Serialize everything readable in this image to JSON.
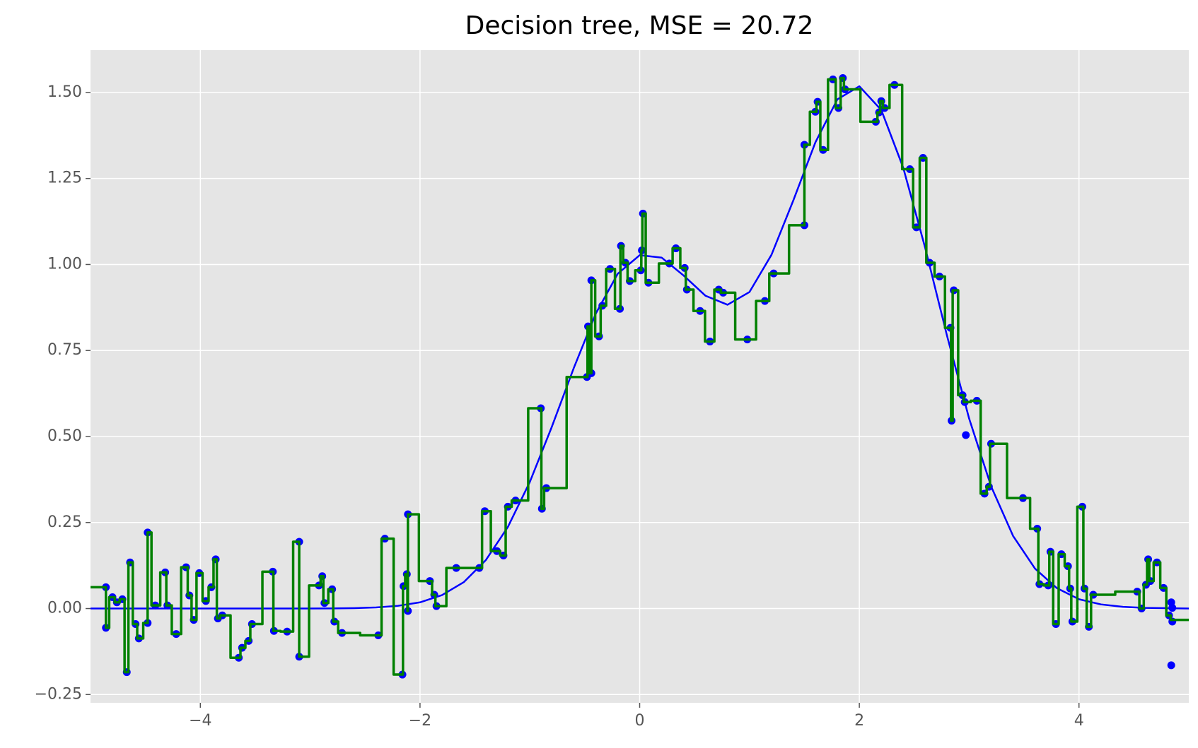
{
  "chart_data": {
    "type": "scatter",
    "title": "Decision tree, MSE = 20.72",
    "xlim": [
      -5,
      5
    ],
    "ylim": [
      -0.274,
      1.623
    ],
    "xticks": [
      {
        "value": -4,
        "label": "−4"
      },
      {
        "value": -2,
        "label": "−2"
      },
      0,
      2,
      4
    ],
    "yticks": [
      {
        "value": -0.25,
        "label": "−0.25"
      },
      {
        "value": 0,
        "label": "0.00"
      },
      {
        "value": 0.25,
        "label": "0.25"
      },
      {
        "value": 0.5,
        "label": "0.50"
      },
      {
        "value": 0.75,
        "label": "0.75"
      },
      {
        "value": 1,
        "label": "1.00"
      },
      {
        "value": 1.25,
        "label": "1.25"
      },
      {
        "value": 1.5,
        "label": "1.50"
      }
    ],
    "grid": true,
    "series": [
      {
        "type": "scatter",
        "color": "#0000ff",
        "x": [
          -4.86,
          -4.86,
          -4.8,
          -4.76,
          -4.71,
          -4.67,
          -4.64,
          -4.59,
          -4.56,
          -4.48,
          -4.48,
          -4.41,
          -4.32,
          -4.3,
          -4.22,
          -4.13,
          -4.1,
          -4.06,
          -4.01,
          -3.95,
          -3.9,
          -3.86,
          -3.84,
          -3.8,
          -3.65,
          -3.62,
          -3.56,
          -3.53,
          -3.34,
          -3.33,
          -3.21,
          -3.1,
          -3.1,
          -2.92,
          -2.89,
          -2.87,
          -2.8,
          -2.78,
          -2.71,
          -2.38,
          -2.32,
          -2.16,
          -2.15,
          -2.12,
          -2.11,
          -2.11,
          -1.91,
          -1.87,
          -1.85,
          -1.67,
          -1.46,
          -1.41,
          -1.3,
          -1.24,
          -1.2,
          -1.13,
          -0.9,
          -0.89,
          -0.85,
          -0.48,
          -0.47,
          -0.44,
          -0.44,
          -0.37,
          -0.34,
          -0.27,
          -0.18,
          -0.17,
          -0.13,
          -0.09,
          0.01,
          0.02,
          0.03,
          0.08,
          0.27,
          0.33,
          0.41,
          0.43,
          0.55,
          0.64,
          0.72,
          0.76,
          0.98,
          1.14,
          1.22,
          1.5,
          1.5,
          1.6,
          1.62,
          1.67,
          1.76,
          1.81,
          1.85,
          1.87,
          2.15,
          2.18,
          2.2,
          2.23,
          2.32,
          2.46,
          2.52,
          2.58,
          2.64,
          2.73,
          2.83,
          2.84,
          2.86,
          2.94,
          2.96,
          2.97,
          3.07,
          3.14,
          3.18,
          3.2,
          3.49,
          3.62,
          3.64,
          3.72,
          3.74,
          3.79,
          3.84,
          3.9,
          3.92,
          3.94,
          4.03,
          4.05,
          4.09,
          4.13,
          4.53,
          4.57,
          4.61,
          4.63,
          4.65,
          4.71,
          4.77,
          4.82,
          4.84,
          4.85,
          4.85,
          4.84
        ],
        "values": [
          0.062,
          -0.056,
          0.033,
          0.018,
          0.027,
          -0.185,
          0.134,
          -0.045,
          -0.087,
          -0.042,
          0.221,
          0.009,
          0.105,
          0.009,
          -0.074,
          0.12,
          0.038,
          -0.033,
          0.103,
          0.022,
          0.062,
          0.143,
          -0.029,
          -0.02,
          -0.143,
          -0.114,
          -0.094,
          -0.045,
          0.107,
          -0.065,
          -0.067,
          0.194,
          -0.14,
          0.067,
          0.094,
          0.016,
          0.056,
          -0.038,
          -0.071,
          -0.078,
          0.203,
          -0.192,
          0.065,
          0.1,
          -0.007,
          0.274,
          0.08,
          0.04,
          0.007,
          0.118,
          0.118,
          0.283,
          0.167,
          0.154,
          0.296,
          0.314,
          0.582,
          0.29,
          0.35,
          0.673,
          0.82,
          0.684,
          0.954,
          0.791,
          0.88,
          0.987,
          0.871,
          1.054,
          1.005,
          0.952,
          0.983,
          1.041,
          1.148,
          0.947,
          1.003,
          1.047,
          0.99,
          0.927,
          0.865,
          0.776,
          0.927,
          0.918,
          0.782,
          0.894,
          0.974,
          1.114,
          1.348,
          1.444,
          1.473,
          1.333,
          1.538,
          1.455,
          1.542,
          1.509,
          1.415,
          1.442,
          1.475,
          1.455,
          1.522,
          1.277,
          1.108,
          1.31,
          1.005,
          0.965,
          0.816,
          0.546,
          0.925,
          0.62,
          0.6,
          0.504,
          0.604,
          0.334,
          0.354,
          0.479,
          0.321,
          0.232,
          0.071,
          0.067,
          0.165,
          -0.045,
          0.158,
          0.123,
          0.058,
          -0.038,
          0.296,
          0.058,
          -0.053,
          0.04,
          0.049,
          0.0,
          0.069,
          0.143,
          0.08,
          0.134,
          0.06,
          -0.02,
          0.018,
          0.002,
          -0.038,
          -0.165
        ]
      },
      {
        "type": "line",
        "color": "#0000ff",
        "x": [
          -5,
          -4.8,
          -4.6,
          -4.4,
          -4.2,
          -4,
          -3.8,
          -3.6,
          -3.4,
          -3.2,
          -3,
          -2.8,
          -2.6,
          -2.4,
          -2.2,
          -2,
          -1.8,
          -1.6,
          -1.4,
          -1.2,
          -1,
          -0.8,
          -0.6,
          -0.4,
          -0.2,
          0,
          0.2,
          0.4,
          0.6,
          0.8,
          1,
          1.2,
          1.4,
          1.6,
          1.8,
          2,
          2.2,
          2.4,
          2.6,
          2.8,
          3,
          3.2,
          3.4,
          3.6,
          3.8,
          4,
          4.2,
          4.4,
          4.6,
          4.8,
          5
        ],
        "values": [
          0,
          0,
          0,
          0,
          0,
          0,
          0,
          0,
          0,
          0,
          0,
          0.0004,
          0.0012,
          0.0032,
          0.0079,
          0.018,
          0.039,
          0.077,
          0.141,
          0.237,
          0.368,
          0.528,
          0.699,
          0.857,
          0.973,
          1.027,
          1.02,
          0.968,
          0.909,
          0.883,
          0.92,
          1.028,
          1.187,
          1.355,
          1.48,
          1.518,
          1.449,
          1.281,
          1.048,
          0.791,
          0.552,
          0.355,
          0.211,
          0.116,
          0.059,
          0.027,
          0.012,
          0.005,
          0.002,
          0.001,
          0
        ]
      },
      {
        "type": "line",
        "drawstyle": "steps-mid",
        "color": "#008000",
        "x": [
          -5,
          -4.86,
          -4.86,
          -4.8,
          -4.76,
          -4.71,
          -4.67,
          -4.64,
          -4.59,
          -4.56,
          -4.48,
          -4.48,
          -4.41,
          -4.32,
          -4.3,
          -4.22,
          -4.13,
          -4.1,
          -4.06,
          -4.01,
          -3.95,
          -3.9,
          -3.86,
          -3.84,
          -3.8,
          -3.65,
          -3.62,
          -3.56,
          -3.53,
          -3.34,
          -3.33,
          -3.21,
          -3.1,
          -3.1,
          -2.92,
          -2.89,
          -2.87,
          -2.8,
          -2.78,
          -2.71,
          -2.38,
          -2.32,
          -2.16,
          -2.15,
          -2.12,
          -2.11,
          -2.11,
          -1.91,
          -1.87,
          -1.85,
          -1.67,
          -1.46,
          -1.41,
          -1.3,
          -1.24,
          -1.2,
          -1.13,
          -0.9,
          -0.89,
          -0.85,
          -0.48,
          -0.47,
          -0.44,
          -0.44,
          -0.37,
          -0.34,
          -0.27,
          -0.18,
          -0.17,
          -0.13,
          -0.09,
          0.01,
          0.02,
          0.03,
          0.08,
          0.27,
          0.33,
          0.41,
          0.43,
          0.55,
          0.64,
          0.72,
          0.76,
          0.98,
          1.14,
          1.22,
          1.5,
          1.5,
          1.6,
          1.62,
          1.67,
          1.76,
          1.81,
          1.85,
          1.87,
          2.15,
          2.18,
          2.2,
          2.23,
          2.32,
          2.46,
          2.52,
          2.58,
          2.64,
          2.73,
          2.83,
          2.84,
          2.86,
          2.94,
          2.96,
          3.07,
          3.14,
          3.18,
          3.2,
          3.49,
          3.62,
          3.64,
          3.72,
          3.74,
          3.79,
          3.84,
          3.9,
          3.92,
          3.94,
          4.03,
          4.05,
          4.09,
          4.13,
          4.53,
          4.57,
          4.61,
          4.63,
          4.65,
          4.71,
          4.77,
          4.82,
          4.85,
          5
        ],
        "values": [
          0.062,
          0.062,
          -0.056,
          0.033,
          0.018,
          0.027,
          -0.185,
          0.134,
          -0.045,
          -0.087,
          -0.042,
          0.221,
          0.009,
          0.105,
          0.009,
          -0.074,
          0.12,
          0.038,
          -0.033,
          0.103,
          0.022,
          0.062,
          0.143,
          -0.029,
          -0.02,
          -0.143,
          -0.114,
          -0.094,
          -0.045,
          0.107,
          -0.065,
          -0.067,
          0.194,
          -0.14,
          0.067,
          0.094,
          0.016,
          0.056,
          -0.038,
          -0.071,
          -0.078,
          0.203,
          -0.192,
          0.065,
          0.1,
          -0.007,
          0.274,
          0.08,
          0.04,
          0.007,
          0.118,
          0.118,
          0.283,
          0.167,
          0.154,
          0.296,
          0.314,
          0.582,
          0.29,
          0.35,
          0.673,
          0.82,
          0.684,
          0.954,
          0.791,
          0.88,
          0.987,
          0.871,
          1.054,
          1.005,
          0.952,
          0.983,
          1.041,
          1.148,
          0.947,
          1.003,
          1.047,
          0.99,
          0.927,
          0.865,
          0.776,
          0.927,
          0.918,
          0.782,
          0.894,
          0.974,
          1.114,
          1.348,
          1.444,
          1.473,
          1.333,
          1.538,
          1.455,
          1.542,
          1.509,
          1.415,
          1.442,
          1.475,
          1.455,
          1.522,
          1.277,
          1.108,
          1.31,
          1.005,
          0.965,
          0.816,
          0.546,
          0.925,
          0.62,
          0.6,
          0.604,
          0.334,
          0.354,
          0.479,
          0.321,
          0.232,
          0.071,
          0.067,
          0.165,
          -0.045,
          0.158,
          0.123,
          0.058,
          -0.038,
          0.296,
          0.058,
          -0.053,
          0.04,
          0.049,
          0.0,
          0.069,
          0.143,
          0.08,
          0.134,
          0.06,
          -0.02,
          -0.033,
          -0.033
        ]
      }
    ]
  }
}
